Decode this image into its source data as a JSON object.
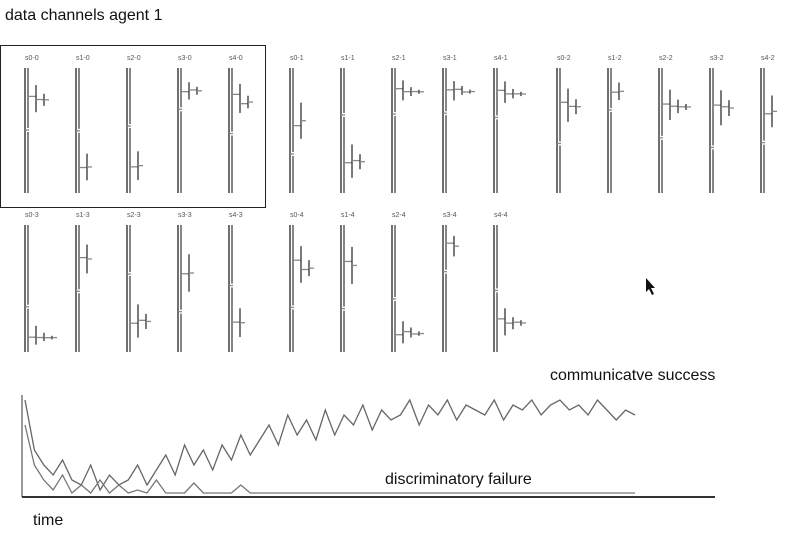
{
  "header": {
    "title": "data channels agent 1"
  },
  "channels": [
    {
      "label": "s0-0"
    },
    {
      "label": "s1-0"
    },
    {
      "label": "s2-0"
    },
    {
      "label": "s3-0"
    },
    {
      "label": "s4-0"
    },
    {
      "label": "s0-1"
    },
    {
      "label": "s1-1"
    },
    {
      "label": "s2-1"
    },
    {
      "label": "s3-1"
    },
    {
      "label": "s4-1"
    },
    {
      "label": "s0-2"
    },
    {
      "label": "s1-2"
    },
    {
      "label": "s2-2"
    },
    {
      "label": "s3-2"
    },
    {
      "label": "s4-2"
    },
    {
      "label": "s0-3"
    },
    {
      "label": "s1-3"
    },
    {
      "label": "s2-3"
    },
    {
      "label": "s3-3"
    },
    {
      "label": "s4-3"
    },
    {
      "label": "s0-4"
    },
    {
      "label": "s1-4"
    },
    {
      "label": "s2-4"
    },
    {
      "label": "s3-4"
    },
    {
      "label": "s4-4"
    }
  ],
  "chart_data": {
    "type": "line",
    "xlabel": "time",
    "ylim": [
      0,
      1
    ],
    "series": [
      {
        "name": "communicatve success",
        "color": "#666666",
        "values": [
          0.95,
          0.45,
          0.3,
          0.2,
          0.35,
          0.15,
          0.1,
          0.3,
          0.05,
          0.2,
          0.1,
          0.15,
          0.3,
          0.1,
          0.25,
          0.4,
          0.2,
          0.5,
          0.3,
          0.45,
          0.25,
          0.5,
          0.35,
          0.6,
          0.4,
          0.55,
          0.7,
          0.5,
          0.8,
          0.6,
          0.75,
          0.55,
          0.85,
          0.6,
          0.8,
          0.7,
          0.9,
          0.65,
          0.85,
          0.75,
          0.8,
          0.95,
          0.7,
          0.9,
          0.8,
          0.95,
          0.75,
          0.9,
          0.85,
          0.8,
          0.95,
          0.75,
          0.9,
          0.85,
          0.95,
          0.8,
          0.9,
          0.95,
          0.85,
          0.9,
          0.8,
          0.95,
          0.85,
          0.75,
          0.85,
          0.8
        ]
      },
      {
        "name": "discriminatory failure",
        "color": "#777777",
        "values": [
          0.7,
          0.3,
          0.15,
          0.05,
          0.2,
          0.02,
          0.1,
          0.02,
          0.15,
          0.02,
          0.1,
          0.02,
          0.05,
          0.02,
          0.15,
          0.02,
          0.02,
          0.02,
          0.12,
          0.02,
          0.02,
          0.02,
          0.02,
          0.1,
          0.02,
          0.02,
          0.02,
          0.02,
          0.02,
          0.02,
          0.02,
          0.02,
          0.02,
          0.02,
          0.02,
          0.02,
          0.02,
          0.02,
          0.02,
          0.02,
          0.02,
          0.02,
          0.02,
          0.02,
          0.02,
          0.02,
          0.02,
          0.02,
          0.02,
          0.02,
          0.02,
          0.02,
          0.02,
          0.02,
          0.02,
          0.02,
          0.02,
          0.02,
          0.02,
          0.02,
          0.02,
          0.02,
          0.02,
          0.02,
          0.02,
          0.02
        ]
      }
    ]
  }
}
